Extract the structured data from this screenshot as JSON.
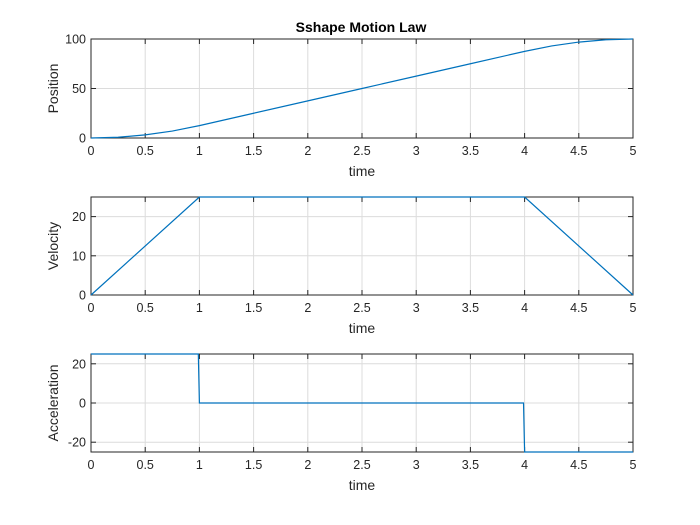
{
  "title": "Sshape Motion Law",
  "colors": {
    "series": "#0072bd"
  },
  "chart_data": [
    {
      "type": "line",
      "title": "Sshape Motion Law",
      "xlabel": "time",
      "ylabel": "Position",
      "xlim": [
        0,
        5
      ],
      "ylim": [
        0,
        100
      ],
      "xticks": [
        "0",
        "0.5",
        "1",
        "1.5",
        "2",
        "2.5",
        "3",
        "3.5",
        "4",
        "4.5",
        "5"
      ],
      "yticks": [
        "0",
        "50",
        "100"
      ],
      "grid": true,
      "series": [
        {
          "x": [
            0,
            0.25,
            0.5,
            0.75,
            1,
            1.5,
            2,
            2.5,
            3,
            3.5,
            4,
            4.25,
            4.5,
            4.75,
            5
          ],
          "y": [
            0,
            0.78,
            3.13,
            7.03,
            12.5,
            25,
            37.5,
            50,
            62.5,
            75,
            87.5,
            92.97,
            96.88,
            99.22,
            100
          ]
        }
      ]
    },
    {
      "type": "line",
      "title": "",
      "xlabel": "time",
      "ylabel": "Velocity",
      "xlim": [
        0,
        5
      ],
      "ylim": [
        0,
        25
      ],
      "xticks": [
        "0",
        "0.5",
        "1",
        "1.5",
        "2",
        "2.5",
        "3",
        "3.5",
        "4",
        "4.5",
        "5"
      ],
      "yticks": [
        "0",
        "10",
        "20"
      ],
      "grid": true,
      "series": [
        {
          "x": [
            0,
            1,
            4,
            5
          ],
          "y": [
            0,
            25,
            25,
            0
          ]
        }
      ]
    },
    {
      "type": "line",
      "title": "",
      "xlabel": "time",
      "ylabel": "Acceleration",
      "xlim": [
        0,
        5
      ],
      "ylim": [
        -25,
        25
      ],
      "xticks": [
        "0",
        "0.5",
        "1",
        "1.5",
        "2",
        "2.5",
        "3",
        "3.5",
        "4",
        "4.5",
        "5"
      ],
      "yticks": [
        "-20",
        "0",
        "20"
      ],
      "grid": true,
      "series": [
        {
          "x": [
            0,
            0.99,
            1.0,
            3.99,
            4.0,
            5
          ],
          "y": [
            25,
            25,
            0,
            0,
            -25,
            -25
          ]
        }
      ]
    }
  ]
}
